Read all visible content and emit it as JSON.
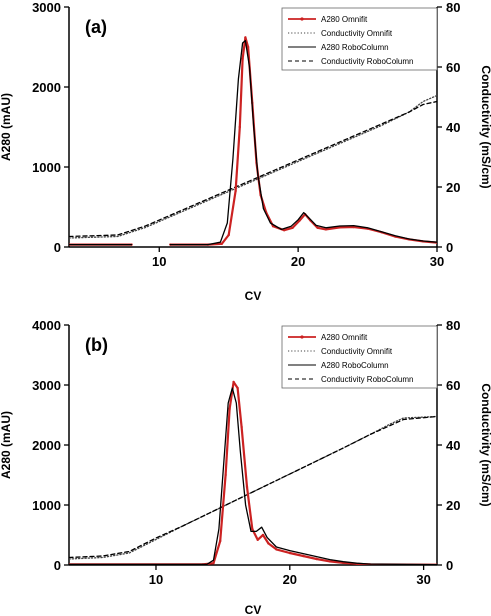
{
  "chart_data": [
    {
      "type": "line",
      "panel_label": "(a)",
      "xlabel": "CV",
      "ylabel": "A280 (mAU)",
      "y2label": "Conductivity (mS/cm)",
      "xlim": [
        3.5,
        30
      ],
      "ylim": [
        0,
        3000
      ],
      "y2lim": [
        0,
        80
      ],
      "xticks": [
        10,
        20,
        30
      ],
      "yticks": [
        0,
        1000,
        2000,
        3000
      ],
      "y2ticks": [
        0,
        20,
        40,
        60,
        80
      ],
      "legend_position": "top-right",
      "series": [
        {
          "name": "A280 Omnifit",
          "axis": "left",
          "color": "#cc2222",
          "style": "solid-marker",
          "segments": [
            [
              [
                3.5,
                30
              ],
              [
                8.0,
                30
              ]
            ],
            [
              [
                10.8,
                30
              ],
              [
                13.5,
                30
              ],
              [
                14.5,
                40
              ],
              [
                15.0,
                150
              ],
              [
                15.5,
                700
              ],
              [
                15.8,
                1500
              ],
              [
                16.0,
                2350
              ],
              [
                16.2,
                2620
              ],
              [
                16.4,
                2500
              ],
              [
                16.7,
                1800
              ],
              [
                17.0,
                1050
              ],
              [
                17.3,
                650
              ],
              [
                17.7,
                430
              ],
              [
                18.2,
                260
              ],
              [
                19.0,
                210
              ],
              [
                19.6,
                240
              ],
              [
                20.1,
                330
              ],
              [
                20.5,
                410
              ],
              [
                20.9,
                330
              ],
              [
                21.4,
                240
              ],
              [
                22.0,
                220
              ],
              [
                23.0,
                245
              ],
              [
                24.0,
                250
              ],
              [
                25.0,
                230
              ],
              [
                26.0,
                185
              ],
              [
                27.0,
                130
              ],
              [
                28.0,
                95
              ],
              [
                29.0,
                70
              ],
              [
                30.0,
                55
              ]
            ]
          ]
        },
        {
          "name": "Conductivity Omnifit",
          "axis": "right",
          "color": "#444444",
          "style": "dotted",
          "segments": [
            [
              [
                3.5,
                3.0
              ],
              [
                7.0,
                3.5
              ],
              [
                9.0,
                6.5
              ],
              [
                11.0,
                10.5
              ],
              [
                14.0,
                16.5
              ],
              [
                17.0,
                22.5
              ],
              [
                20.0,
                28.5
              ],
              [
                23.0,
                34.5
              ],
              [
                26.0,
                40.5
              ],
              [
                28.0,
                45.0
              ],
              [
                29.0,
                48.5
              ],
              [
                30.0,
                50.5
              ]
            ]
          ]
        },
        {
          "name": "A280 RoboColumn",
          "axis": "left",
          "color": "#000000",
          "style": "solid",
          "segments": [
            [
              [
                3.5,
                30
              ],
              [
                8.0,
                30
              ]
            ],
            [
              [
                10.8,
                30
              ],
              [
                13.5,
                30
              ],
              [
                14.4,
                60
              ],
              [
                14.9,
                300
              ],
              [
                15.3,
                1100
              ],
              [
                15.7,
                2100
              ],
              [
                16.0,
                2550
              ],
              [
                16.2,
                2580
              ],
              [
                16.5,
                2250
              ],
              [
                16.8,
                1500
              ],
              [
                17.1,
                900
              ],
              [
                17.5,
                480
              ],
              [
                18.0,
                300
              ],
              [
                18.8,
                220
              ],
              [
                19.5,
                260
              ],
              [
                20.0,
                340
              ],
              [
                20.4,
                430
              ],
              [
                20.8,
                360
              ],
              [
                21.3,
                270
              ],
              [
                22.0,
                240
              ],
              [
                23.0,
                262
              ],
              [
                24.0,
                268
              ],
              [
                25.0,
                240
              ],
              [
                26.0,
                190
              ],
              [
                27.0,
                140
              ],
              [
                28.0,
                100
              ],
              [
                29.0,
                75
              ],
              [
                30.0,
                60
              ]
            ]
          ]
        },
        {
          "name": "Conductivity RoboColumn",
          "axis": "right",
          "color": "#000000",
          "style": "dashed",
          "segments": [
            [
              [
                3.5,
                3.5
              ],
              [
                7.0,
                4.0
              ],
              [
                9.0,
                7.0
              ],
              [
                11.0,
                11.0
              ],
              [
                14.0,
                17.0
              ],
              [
                17.0,
                23.0
              ],
              [
                20.0,
                29.0
              ],
              [
                23.0,
                35.0
              ],
              [
                26.0,
                41.0
              ],
              [
                28.0,
                45.0
              ],
              [
                29.0,
                47.5
              ],
              [
                30.0,
                48.5
              ]
            ]
          ]
        }
      ]
    },
    {
      "type": "line",
      "panel_label": "(b)",
      "xlabel": "CV",
      "ylabel": "A280 (mAU)",
      "y2label": "Conductivity (mS/cm)",
      "xlim": [
        3.5,
        31
      ],
      "ylim": [
        0,
        4000
      ],
      "y2lim": [
        0,
        80
      ],
      "xticks": [
        10,
        20,
        30
      ],
      "yticks": [
        0,
        1000,
        2000,
        3000,
        4000
      ],
      "y2ticks": [
        0,
        20,
        40,
        60,
        80
      ],
      "legend_position": "top-right",
      "series": [
        {
          "name": "A280 Omnifit",
          "axis": "left",
          "color": "#cc2222",
          "style": "solid-marker",
          "segments": [
            [
              [
                3.5,
                10
              ],
              [
                13.5,
                10
              ],
              [
                14.3,
                30
              ],
              [
                14.8,
                400
              ],
              [
                15.2,
                1500
              ],
              [
                15.5,
                2600
              ],
              [
                15.8,
                3050
              ],
              [
                16.1,
                2950
              ],
              [
                16.4,
                2300
              ],
              [
                16.8,
                1300
              ],
              [
                17.2,
                600
              ],
              [
                17.6,
                420
              ],
              [
                18.0,
                500
              ],
              [
                18.4,
                360
              ],
              [
                19.0,
                260
              ],
              [
                20.0,
                200
              ],
              [
                21.0,
                150
              ],
              [
                22.0,
                100
              ],
              [
                23.0,
                60
              ],
              [
                24.0,
                35
              ],
              [
                25.0,
                20
              ],
              [
                26.0,
                10
              ],
              [
                31.0,
                5
              ]
            ]
          ]
        },
        {
          "name": "Conductivity Omnifit",
          "axis": "right",
          "color": "#444444",
          "style": "dotted",
          "segments": [
            [
              [
                3.5,
                2.0
              ],
              [
                6.0,
                2.5
              ],
              [
                8.0,
                4.0
              ],
              [
                10.0,
                8.5
              ],
              [
                12.0,
                13.0
              ],
              [
                15.0,
                19.5
              ],
              [
                18.0,
                26.0
              ],
              [
                21.0,
                32.5
              ],
              [
                24.0,
                39.0
              ],
              [
                26.0,
                43.5
              ],
              [
                27.5,
                47.0
              ],
              [
                28.5,
                49.0
              ],
              [
                31.0,
                49.5
              ]
            ]
          ]
        },
        {
          "name": "A280 RoboColumn",
          "axis": "right",
          "color": "#000000",
          "style": "solid",
          "segments": [
            [
              [
                3.5,
                0
              ],
              [
                3.5,
                0
              ]
            ]
          ],
          "hidden": true
        },
        {
          "name": "A280 RoboColumn",
          "axis": "left",
          "color": "#000000",
          "style": "solid",
          "segments": [
            [
              [
                3.5,
                10
              ],
              [
                13.8,
                10
              ],
              [
                14.3,
                80
              ],
              [
                14.7,
                600
              ],
              [
                15.1,
                1800
              ],
              [
                15.4,
                2700
              ],
              [
                15.7,
                2950
              ],
              [
                16.0,
                2700
              ],
              [
                16.3,
                1900
              ],
              [
                16.7,
                1000
              ],
              [
                17.1,
                560
              ],
              [
                17.5,
                560
              ],
              [
                17.9,
                630
              ],
              [
                18.3,
                460
              ],
              [
                19.0,
                300
              ],
              [
                20.0,
                240
              ],
              [
                21.0,
                190
              ],
              [
                22.0,
                140
              ],
              [
                23.0,
                90
              ],
              [
                24.0,
                55
              ],
              [
                25.0,
                30
              ],
              [
                26.0,
                15
              ],
              [
                31.0,
                5
              ]
            ]
          ]
        },
        {
          "name": "Conductivity RoboColumn",
          "axis": "right",
          "color": "#000000",
          "style": "dashed",
          "segments": [
            [
              [
                3.5,
                2.5
              ],
              [
                6.0,
                3.0
              ],
              [
                8.0,
                4.5
              ],
              [
                10.0,
                9.0
              ],
              [
                12.0,
                13.0
              ],
              [
                15.0,
                19.5
              ],
              [
                18.0,
                26.0
              ],
              [
                21.0,
                32.5
              ],
              [
                24.0,
                39.0
              ],
              [
                26.0,
                43.5
              ],
              [
                27.5,
                46.5
              ],
              [
                28.5,
                48.5
              ],
              [
                31.0,
                49.5
              ]
            ]
          ]
        }
      ]
    }
  ]
}
